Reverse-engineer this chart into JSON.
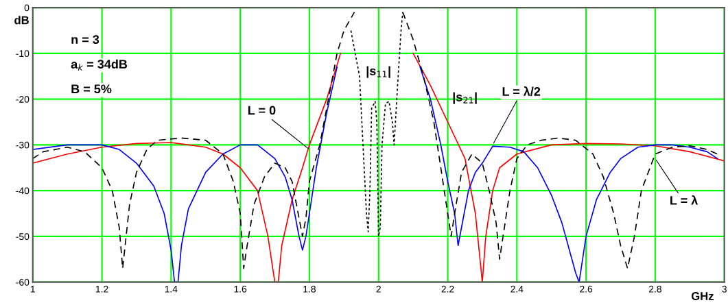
{
  "chart_data": {
    "type": "line",
    "xlabel": "GHz",
    "ylabel": "dB",
    "xlim": [
      1,
      3
    ],
    "ylim": [
      -60,
      0
    ],
    "xticks": [
      1,
      1.2,
      1.4,
      1.6,
      1.8,
      2,
      2.2,
      2.4,
      2.6,
      2.8,
      3
    ],
    "yticks": [
      -60,
      -50,
      -40,
      -30,
      -20,
      -10,
      0
    ],
    "grid": true,
    "legend": false,
    "series": [
      {
        "color": "#ff0000",
        "line_style": "solid",
        "x": [
          1,
          1.1,
          1.2,
          1.3,
          1.4,
          1.5,
          1.55,
          1.6,
          1.65,
          1.68,
          1.7,
          1.71,
          1.72,
          1.75,
          1.78,
          1.8,
          1.85,
          1.89,
          null,
          2.1,
          2.15,
          2.2,
          2.25,
          2.28,
          2.3,
          2.31,
          2.33,
          2.35,
          2.4,
          2.5,
          2.6,
          2.7,
          2.8,
          2.9,
          3
        ],
        "values": [
          -34,
          -32,
          -30.5,
          -29.7,
          -29.5,
          -30.5,
          -32,
          -35,
          -40,
          -50,
          -60,
          -60,
          -52,
          -42,
          -35,
          -30,
          -20,
          -10,
          null,
          -10,
          -17,
          -25,
          -33,
          -45,
          -60,
          -50,
          -40,
          -35,
          -32,
          -30,
          -29.7,
          -29.8,
          -30.2,
          -31.5,
          -33.5
        ]
      },
      {
        "color": "#0000ff",
        "line_style": "solid",
        "x": [
          1,
          1.1,
          1.2,
          1.25,
          1.3,
          1.35,
          1.38,
          1.4,
          1.41,
          1.42,
          1.43,
          1.45,
          1.5,
          1.55,
          1.6,
          1.65,
          1.7,
          1.73,
          1.75,
          1.77,
          1.78,
          1.79,
          1.8,
          1.82,
          1.85,
          1.88,
          null,
          2.12,
          2.15,
          2.18,
          2.2,
          2.22,
          2.23,
          2.24,
          2.26,
          2.28,
          2.3,
          2.33,
          2.38,
          2.42,
          2.46,
          2.5,
          2.53,
          2.57,
          2.58,
          2.59,
          2.6,
          2.63,
          2.67,
          2.7,
          2.75,
          2.8,
          2.85,
          2.9,
          2.95,
          2.98
        ],
        "values": [
          -31,
          -30,
          -30,
          -31,
          -34,
          -39,
          -45,
          -53,
          -60,
          -60,
          -52,
          -44,
          -36,
          -32,
          -30,
          -30,
          -33,
          -37,
          -42,
          -50,
          -53,
          -50,
          -45,
          -35,
          -23,
          -13,
          null,
          -13,
          -20,
          -30,
          -38,
          -45,
          -52,
          -48,
          -40,
          -36,
          -34,
          -30.3,
          -30.5,
          -31.5,
          -35,
          -41,
          -47,
          -58,
          -60,
          -55,
          -50,
          -42,
          -36,
          -33,
          -30.5,
          -30,
          -30,
          -30.5,
          -31.5,
          -33
        ]
      },
      {
        "color": "#000000",
        "line_style": "dashed",
        "x": [
          1,
          1.03,
          1.1,
          1.15,
          1.2,
          1.23,
          1.25,
          1.26,
          1.27,
          1.28,
          1.3,
          1.33,
          1.36,
          1.43,
          1.5,
          1.55,
          1.58,
          1.6,
          1.61,
          1.62,
          1.64,
          1.67,
          1.7,
          1.73,
          1.75,
          1.76,
          1.78,
          1.79,
          1.8,
          1.83,
          1.86,
          1.88,
          1.9,
          1.93,
          null,
          2.07,
          2.1,
          2.13,
          2.16,
          2.18,
          2.2,
          2.21,
          2.22,
          2.24,
          2.27,
          2.3,
          2.32,
          2.34,
          2.35,
          2.36,
          2.38,
          2.4,
          2.43,
          2.47,
          2.52,
          2.57,
          2.62,
          2.65,
          2.68,
          2.7,
          2.72,
          2.74,
          2.76,
          2.8,
          2.85,
          2.9,
          2.95,
          2.98
        ],
        "values": [
          -33,
          -31.5,
          -30.5,
          -31.5,
          -35,
          -40,
          -48,
          -57,
          -50,
          -43,
          -36,
          -31,
          -29,
          -28.5,
          -29,
          -32,
          -38,
          -45,
          -57,
          -52,
          -43,
          -37,
          -34,
          -35,
          -38,
          -42,
          -50,
          -46,
          -38,
          -30,
          -18,
          -10,
          -5,
          -1,
          null,
          -1,
          -7,
          -15,
          -25,
          -35,
          -45,
          -50,
          -45,
          -36,
          -32,
          -34,
          -40,
          -47,
          -55,
          -50,
          -40,
          -33,
          -30,
          -29,
          -28.5,
          -29,
          -32,
          -37,
          -45,
          -52,
          -57,
          -50,
          -40,
          -32,
          -30.5,
          -30.2,
          -31,
          -32
        ]
      },
      {
        "color": "#000000",
        "line_style": "dotted",
        "x": [
          1.92,
          1.945,
          1.955,
          1.965,
          1.97,
          1.975,
          1.98,
          1.99,
          1.995,
          2.0,
          2.005,
          2.01,
          2.02,
          2.03,
          2.04,
          2.045,
          2.055,
          2.065,
          2.07
        ],
        "values": [
          -5,
          -15,
          -30,
          -45,
          -49,
          -40,
          -22,
          -20.5,
          -25,
          -50,
          -48,
          -30,
          -21,
          -20.5,
          -25,
          -30,
          -17,
          -5,
          -1
        ]
      }
    ],
    "annotations": [
      "n = 3",
      "a$_{k}$ = 34dB",
      "B = 5%",
      {
        "text": "L = 0",
        "x": 1.8,
        "y": -31
      },
      "|s$_{11}$|",
      "|s$_{21}$|",
      {
        "text": "L = λ/2",
        "x": 2.33,
        "y": -30
      },
      {
        "text": "L = λ",
        "x": 2.8,
        "y": -33
      }
    ]
  }
}
